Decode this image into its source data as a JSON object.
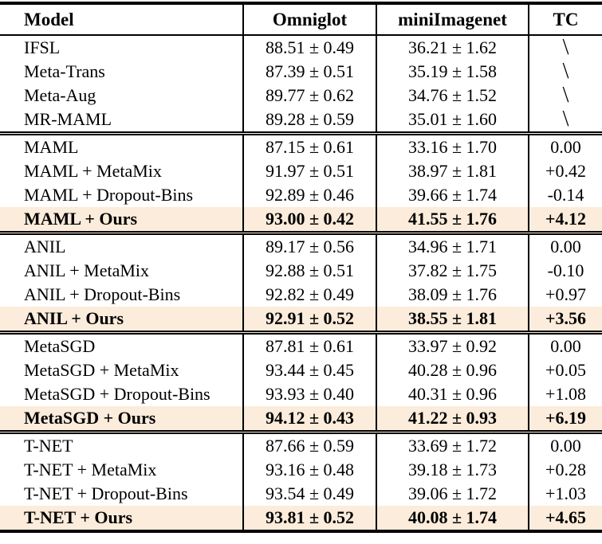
{
  "page": {
    "background": "#ffffff",
    "rule_color": "#000000",
    "highlight_color": "#fbecdb"
  },
  "table": {
    "columns": [
      "Model",
      "Omniglot",
      "miniImagenet",
      "TC"
    ],
    "groups": [
      {
        "rows": [
          {
            "model": "IFSL",
            "omniglot": "88.51 ± 0.49",
            "miniimagenet": "36.21 ± 1.62",
            "tc": "\\",
            "highlight": false
          },
          {
            "model": "Meta-Trans",
            "omniglot": "87.39 ± 0.51",
            "miniimagenet": "35.19 ± 1.58",
            "tc": "\\",
            "highlight": false
          },
          {
            "model": "Meta-Aug",
            "omniglot": "89.77 ± 0.62",
            "miniimagenet": "34.76 ± 1.52",
            "tc": "\\",
            "highlight": false
          },
          {
            "model": "MR-MAML",
            "omniglot": "89.28 ± 0.59",
            "miniimagenet": "35.01 ± 1.60",
            "tc": "\\",
            "highlight": false
          }
        ]
      },
      {
        "rows": [
          {
            "model": "MAML",
            "omniglot": "87.15 ± 0.61",
            "miniimagenet": "33.16 ± 1.70",
            "tc": "0.00",
            "highlight": false
          },
          {
            "model": "MAML + MetaMix",
            "omniglot": "91.97 ± 0.51",
            "miniimagenet": "38.97 ± 1.81",
            "tc": "+0.42",
            "highlight": false
          },
          {
            "model": "MAML + Dropout-Bins",
            "omniglot": "92.89 ± 0.46",
            "miniimagenet": "39.66 ± 1.74",
            "tc": "-0.14",
            "highlight": false
          },
          {
            "model": "MAML + Ours",
            "omniglot": "93.00 ± 0.42",
            "miniimagenet": "41.55 ± 1.76",
            "tc": "+4.12",
            "highlight": true
          }
        ]
      },
      {
        "rows": [
          {
            "model": "ANIL",
            "omniglot": "89.17 ± 0.56",
            "miniimagenet": "34.96 ± 1.71",
            "tc": "0.00",
            "highlight": false
          },
          {
            "model": "ANIL + MetaMix",
            "omniglot": "92.88 ± 0.51",
            "miniimagenet": "37.82 ± 1.75",
            "tc": "-0.10",
            "highlight": false
          },
          {
            "model": "ANIL + Dropout-Bins",
            "omniglot": "92.82 ± 0.49",
            "miniimagenet": "38.09 ± 1.76",
            "tc": "+0.97",
            "highlight": false
          },
          {
            "model": "ANIL + Ours",
            "omniglot": "92.91 ± 0.52",
            "miniimagenet": "38.55 ± 1.81",
            "tc": "+3.56",
            "highlight": true
          }
        ]
      },
      {
        "rows": [
          {
            "model": "MetaSGD",
            "omniglot": "87.81 ± 0.61",
            "miniimagenet": "33.97 ± 0.92",
            "tc": "0.00",
            "highlight": false
          },
          {
            "model": "MetaSGD + MetaMix",
            "omniglot": "93.44 ± 0.45",
            "miniimagenet": "40.28 ± 0.96",
            "tc": "+0.05",
            "highlight": false
          },
          {
            "model": "MetaSGD + Dropout-Bins",
            "omniglot": "93.93 ± 0.40",
            "miniimagenet": "40.31 ± 0.96",
            "tc": "+1.08",
            "highlight": false
          },
          {
            "model": "MetaSGD + Ours",
            "omniglot": "94.12 ± 0.43",
            "miniimagenet": "41.22 ± 0.93",
            "tc": "+6.19",
            "highlight": true
          }
        ]
      },
      {
        "rows": [
          {
            "model": "T-NET",
            "omniglot": "87.66 ± 0.59",
            "miniimagenet": "33.69 ± 1.72",
            "tc": "0.00",
            "highlight": false
          },
          {
            "model": "T-NET + MetaMix",
            "omniglot": "93.16 ± 0.48",
            "miniimagenet": "39.18 ± 1.73",
            "tc": "+0.28",
            "highlight": false
          },
          {
            "model": "T-NET + Dropout-Bins",
            "omniglot": "93.54 ± 0.49",
            "miniimagenet": "39.06 ± 1.72",
            "tc": "+1.03",
            "highlight": false
          },
          {
            "model": "T-NET + Ours",
            "omniglot": "93.81 ± 0.52",
            "miniimagenet": "40.08 ± 1.74",
            "tc": "+4.65",
            "highlight": true
          }
        ]
      }
    ]
  }
}
